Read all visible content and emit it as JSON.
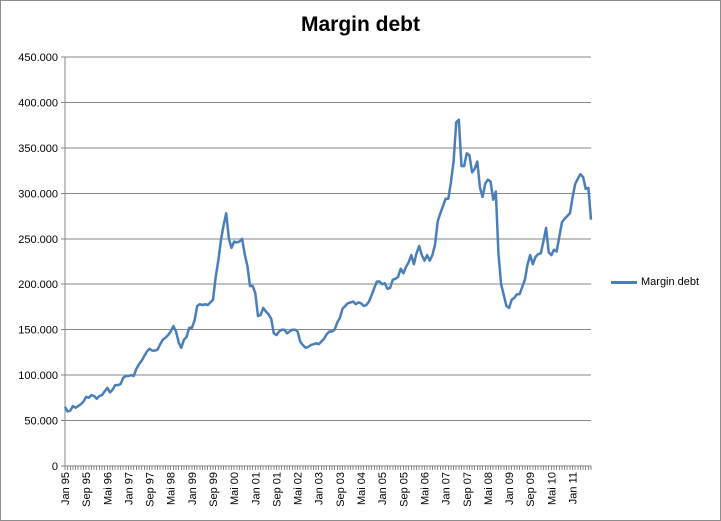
{
  "chart_data": {
    "type": "line",
    "title": "Margin debt",
    "xlabel": "",
    "ylabel": "",
    "ylim": [
      0,
      450000
    ],
    "yticks": [
      "0",
      "50.000",
      "100.000",
      "150.000",
      "200.000",
      "250.000",
      "300.000",
      "350.000",
      "400.000",
      "450.000"
    ],
    "xticks": [
      "Jan 95",
      "Sep 95",
      "Mai 96",
      "Jan 97",
      "Sep 97",
      "Mai 98",
      "Jan 99",
      "Sep 99",
      "Mai 00",
      "Jan 01",
      "Sep 01",
      "Mai 02",
      "Jan 03",
      "Sep 03",
      "Mai 04",
      "Jan 05",
      "Sep 05",
      "Mai 06",
      "Jan 07",
      "Sep 07",
      "Mai 08",
      "Jan 09",
      "Sep 09",
      "Mai 10",
      "Jan 11"
    ],
    "grid": "horizontal",
    "legend_position": "right",
    "series": [
      {
        "name": "Margin debt",
        "color": "#4a7ebb",
        "x_start": "Jan 95",
        "frequency": "monthly",
        "values": [
          65000,
          60000,
          61000,
          66000,
          64000,
          66000,
          68000,
          71000,
          76000,
          75000,
          78000,
          77000,
          74000,
          77000,
          78000,
          82000,
          86000,
          81000,
          84000,
          89000,
          89000,
          90000,
          97000,
          99000,
          99000,
          100000,
          99000,
          107000,
          112000,
          116000,
          121000,
          126000,
          129000,
          127000,
          127000,
          128000,
          134000,
          139000,
          141000,
          144000,
          148000,
          154000,
          148000,
          136000,
          130000,
          139000,
          142000,
          152000,
          152000,
          160000,
          176000,
          178000,
          177000,
          178000,
          177000,
          180000,
          183000,
          208000,
          226000,
          248000,
          265000,
          278000,
          250000,
          240000,
          247000,
          246000,
          247000,
          250000,
          233000,
          220000,
          198000,
          198000,
          190000,
          165000,
          166000,
          174000,
          170000,
          167000,
          162000,
          146000,
          144000,
          148000,
          150000,
          150000,
          146000,
          148000,
          150000,
          150000,
          148000,
          137000,
          133000,
          130000,
          131000,
          133000,
          134000,
          135000,
          134000,
          137000,
          140000,
          145000,
          148000,
          148000,
          150000,
          158000,
          163000,
          173000,
          176000,
          179000,
          180000,
          181000,
          178000,
          180000,
          179000,
          176000,
          177000,
          181000,
          188000,
          196000,
          203000,
          203000,
          200000,
          201000,
          195000,
          196000,
          205000,
          206000,
          208000,
          217000,
          212000,
          219000,
          224000,
          232000,
          222000,
          234000,
          242000,
          232000,
          226000,
          232000,
          226000,
          232000,
          244000,
          269000,
          278000,
          286000,
          294000,
          294000,
          312000,
          335000,
          378000,
          381000,
          330000,
          330000,
          344000,
          342000,
          323000,
          327000,
          335000,
          306000,
          296000,
          311000,
          315000,
          313000,
          293000,
          302000,
          233000,
          200000,
          188000,
          176000,
          174000,
          183000,
          185000,
          189000,
          189000,
          197000,
          205000,
          222000,
          232000,
          222000,
          230000,
          233000,
          234000,
          247000,
          262000,
          235000,
          232000,
          238000,
          236000,
          252000,
          268000,
          272000,
          275000,
          278000,
          295000,
          310000,
          316000,
          321000,
          318000,
          305000,
          306000,
          271000
        ]
      }
    ]
  }
}
